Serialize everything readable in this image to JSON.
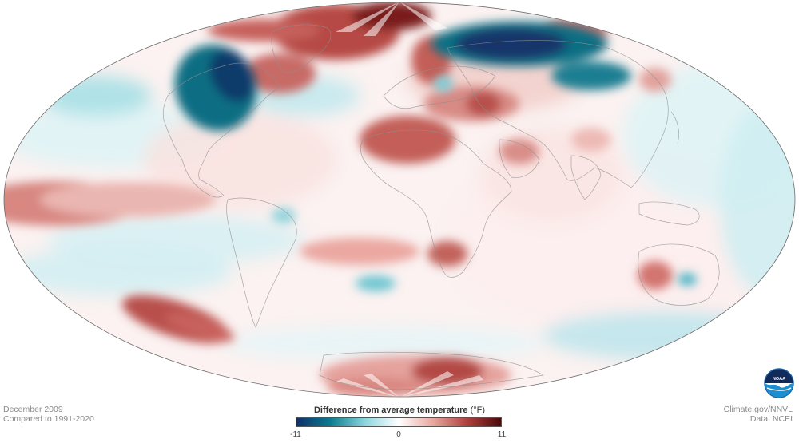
{
  "map": {
    "projection": "mollweide",
    "variable": "temperature anomaly"
  },
  "caption_left": {
    "line1": "December 2009",
    "line2": "Compared to 1991-2020"
  },
  "caption_right": {
    "line1": "Climate.gov/NNVL",
    "line2": "Data: NCEI"
  },
  "legend": {
    "title": "Difference from average temperature",
    "unit": "(°F)",
    "min_label": "-11",
    "mid_label": "0",
    "max_label": "11",
    "colors": {
      "cold_extreme": "#0f2f6b",
      "cold": "#0b7c8f",
      "cool": "#8ad5dd",
      "neutral": "#ffffff",
      "warm": "#e8a8a0",
      "hot": "#b0403c",
      "hot_extreme": "#4a0a0a"
    }
  },
  "logo": {
    "name": "noaa-logo",
    "text": "NOAA"
  }
}
